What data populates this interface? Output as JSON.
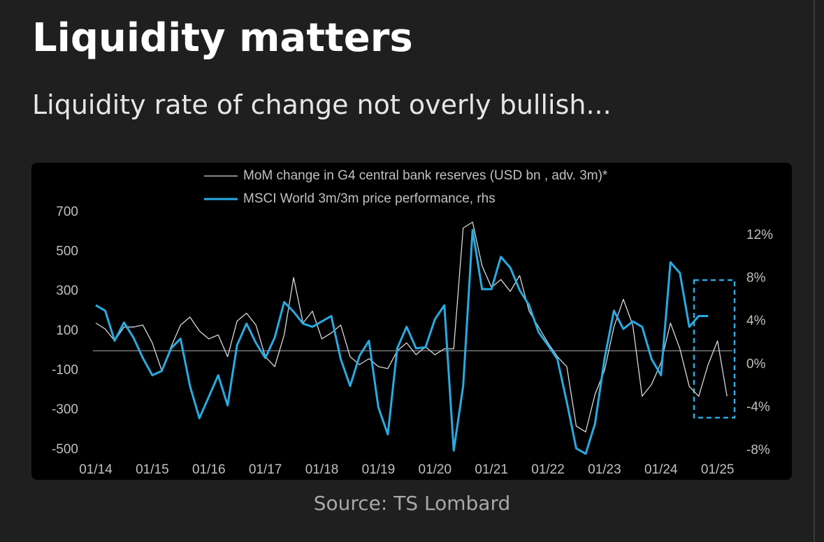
{
  "header": {
    "title": "Liquidity matters",
    "subtitle": "Liquidity rate of change not overly bullish..."
  },
  "chart_data": {
    "type": "line",
    "categories": [
      "01/14",
      null,
      null,
      null,
      null,
      null,
      "01/15",
      null,
      null,
      null,
      null,
      null,
      "01/16",
      null,
      null,
      null,
      null,
      null,
      "01/17",
      null,
      null,
      null,
      null,
      null,
      "01/18",
      null,
      null,
      null,
      null,
      null,
      "01/19",
      null,
      null,
      null,
      null,
      null,
      "01/20",
      null,
      null,
      null,
      null,
      null,
      "01/21",
      null,
      null,
      null,
      null,
      null,
      "01/22",
      null,
      null,
      null,
      null,
      null,
      "01/23",
      null,
      null,
      null,
      null,
      null,
      "01/24",
      null,
      null,
      null,
      null,
      null,
      "01/25",
      null
    ],
    "series": [
      {
        "name": "MoM change in G4 central bank reserves (USD bn , adv. 3m)*",
        "color": "#d9d9d9",
        "values": [
          140,
          110,
          50,
          120,
          120,
          130,
          40,
          -100,
          20,
          130,
          170,
          100,
          60,
          80,
          -30,
          150,
          190,
          130,
          -30,
          -80,
          80,
          370,
          140,
          200,
          60,
          90,
          130,
          -30,
          -70,
          -40,
          -80,
          -90,
          0,
          40,
          -20,
          20,
          -20,
          10,
          10,
          620,
          650,
          430,
          320,
          360,
          300,
          380,
          200,
          120,
          40,
          -30,
          -80,
          -380,
          -410,
          -220,
          -100,
          120,
          260,
          130,
          -230,
          -170,
          -60,
          140,
          10,
          -180,
          -230,
          -70,
          50,
          -230
        ]
      },
      {
        "name": "MSCI World 3m/3m price performance, rhs",
        "color": "#29abe2",
        "axis": "y2",
        "values": [
          5.5,
          5.0,
          2.2,
          3.9,
          2.5,
          0.6,
          -1.0,
          -0.6,
          1.5,
          2.4,
          -2.0,
          -5.0,
          -3.0,
          -1.0,
          -3.8,
          1.8,
          3.8,
          2.0,
          0.6,
          2.5,
          5.8,
          4.9,
          3.8,
          3.5,
          4.0,
          4.5,
          0.5,
          -2.0,
          0.8,
          2.2,
          -4.0,
          -6.5,
          1.5,
          3.5,
          1.5,
          1.6,
          4.2,
          5.5,
          -8.0,
          -2.0,
          12.5,
          7.0,
          7.0,
          10.0,
          9.0,
          6.9,
          5.5,
          3.0,
          1.8,
          0.5,
          -3.5,
          -7.8,
          -8.3,
          -5.5,
          0.5,
          5.0,
          3.3,
          4.0,
          3.5,
          0.5,
          -1.0,
          9.5,
          8.5,
          3.5,
          4.5,
          4.5,
          null,
          null
        ]
      }
    ],
    "ylim": [
      -557,
      749
    ],
    "yticks": [
      700,
      500,
      300,
      100,
      -100,
      -300,
      -500
    ],
    "y2lim": [
      -8.97,
      15.05
    ],
    "y2ticks": [
      {
        "value": 12,
        "label": "12%"
      },
      {
        "value": 8,
        "label": "8%"
      },
      {
        "value": 4,
        "label": "4%"
      },
      {
        "value": 0,
        "label": "0%"
      },
      {
        "value": -4,
        "label": "-4%"
      },
      {
        "value": -8,
        "label": "-8%"
      }
    ]
  },
  "source": "Source: TS Lombard"
}
